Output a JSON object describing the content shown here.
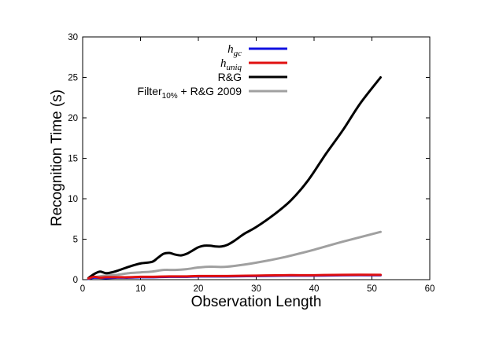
{
  "chart_data": {
    "type": "line",
    "xlabel": "Observation Length",
    "ylabel": "Recognition Time (s)",
    "xlim": [
      0,
      60
    ],
    "ylim": [
      0,
      30
    ],
    "xticks": [
      "0",
      "10",
      "20",
      "30",
      "40",
      "50",
      "60"
    ],
    "yticks": [
      "0",
      "5",
      "10",
      "15",
      "20",
      "25",
      "30"
    ],
    "legend_position": "top-center",
    "grid": false,
    "series": [
      {
        "name": "h_gc",
        "legend": {
          "base": "h",
          "sub": "gc"
        },
        "color": "#1010e0",
        "x": [
          1,
          2,
          4,
          6,
          8,
          10,
          12,
          15,
          18,
          20,
          25,
          30,
          35,
          40,
          45,
          51.5
        ],
        "y": [
          0.1,
          0.25,
          0.2,
          0.25,
          0.25,
          0.3,
          0.3,
          0.35,
          0.35,
          0.4,
          0.4,
          0.45,
          0.5,
          0.5,
          0.55,
          0.55
        ]
      },
      {
        "name": "h_uniq",
        "legend": {
          "base": "h",
          "sub": "uniq"
        },
        "color": "#e01010",
        "x": [
          1,
          2,
          3,
          4,
          6,
          8,
          10,
          12,
          15,
          18,
          20,
          25,
          30,
          35,
          40,
          45,
          51.5
        ],
        "y": [
          0.15,
          0.35,
          0.25,
          0.3,
          0.3,
          0.3,
          0.35,
          0.35,
          0.4,
          0.4,
          0.45,
          0.45,
          0.5,
          0.55,
          0.55,
          0.6,
          0.6
        ]
      },
      {
        "name": "R&G",
        "legend": {
          "base": "R&G",
          "sub": ""
        },
        "color": "#000000",
        "x": [
          1,
          2,
          3,
          4,
          5,
          6,
          8,
          10,
          12,
          13,
          14,
          15,
          16,
          17,
          18,
          19,
          20,
          21,
          22,
          23,
          24,
          25,
          26,
          27,
          28,
          30,
          33,
          36,
          39,
          42,
          45,
          48,
          51.5
        ],
        "y": [
          0.2,
          0.7,
          1.0,
          0.8,
          0.9,
          1.1,
          1.6,
          2.0,
          2.2,
          2.7,
          3.2,
          3.3,
          3.1,
          3.0,
          3.2,
          3.6,
          4.0,
          4.2,
          4.2,
          4.1,
          4.1,
          4.3,
          4.7,
          5.2,
          5.7,
          6.5,
          8.0,
          9.8,
          12.3,
          15.5,
          18.5,
          21.8,
          25.0
        ]
      },
      {
        "name": "Filter10% + R&G 2009",
        "legend": {
          "base": "Filter",
          "sub": "10%",
          "suffix": " + R&G 2009"
        },
        "color": "#a0a0a0",
        "x": [
          1,
          2,
          4,
          6,
          8,
          10,
          12,
          14,
          16,
          18,
          20,
          22,
          25,
          30,
          35,
          40,
          45,
          51.5
        ],
        "y": [
          0.1,
          0.3,
          0.5,
          0.6,
          0.8,
          0.9,
          1.0,
          1.2,
          1.2,
          1.3,
          1.5,
          1.6,
          1.6,
          2.1,
          2.8,
          3.7,
          4.7,
          5.9
        ]
      }
    ]
  }
}
